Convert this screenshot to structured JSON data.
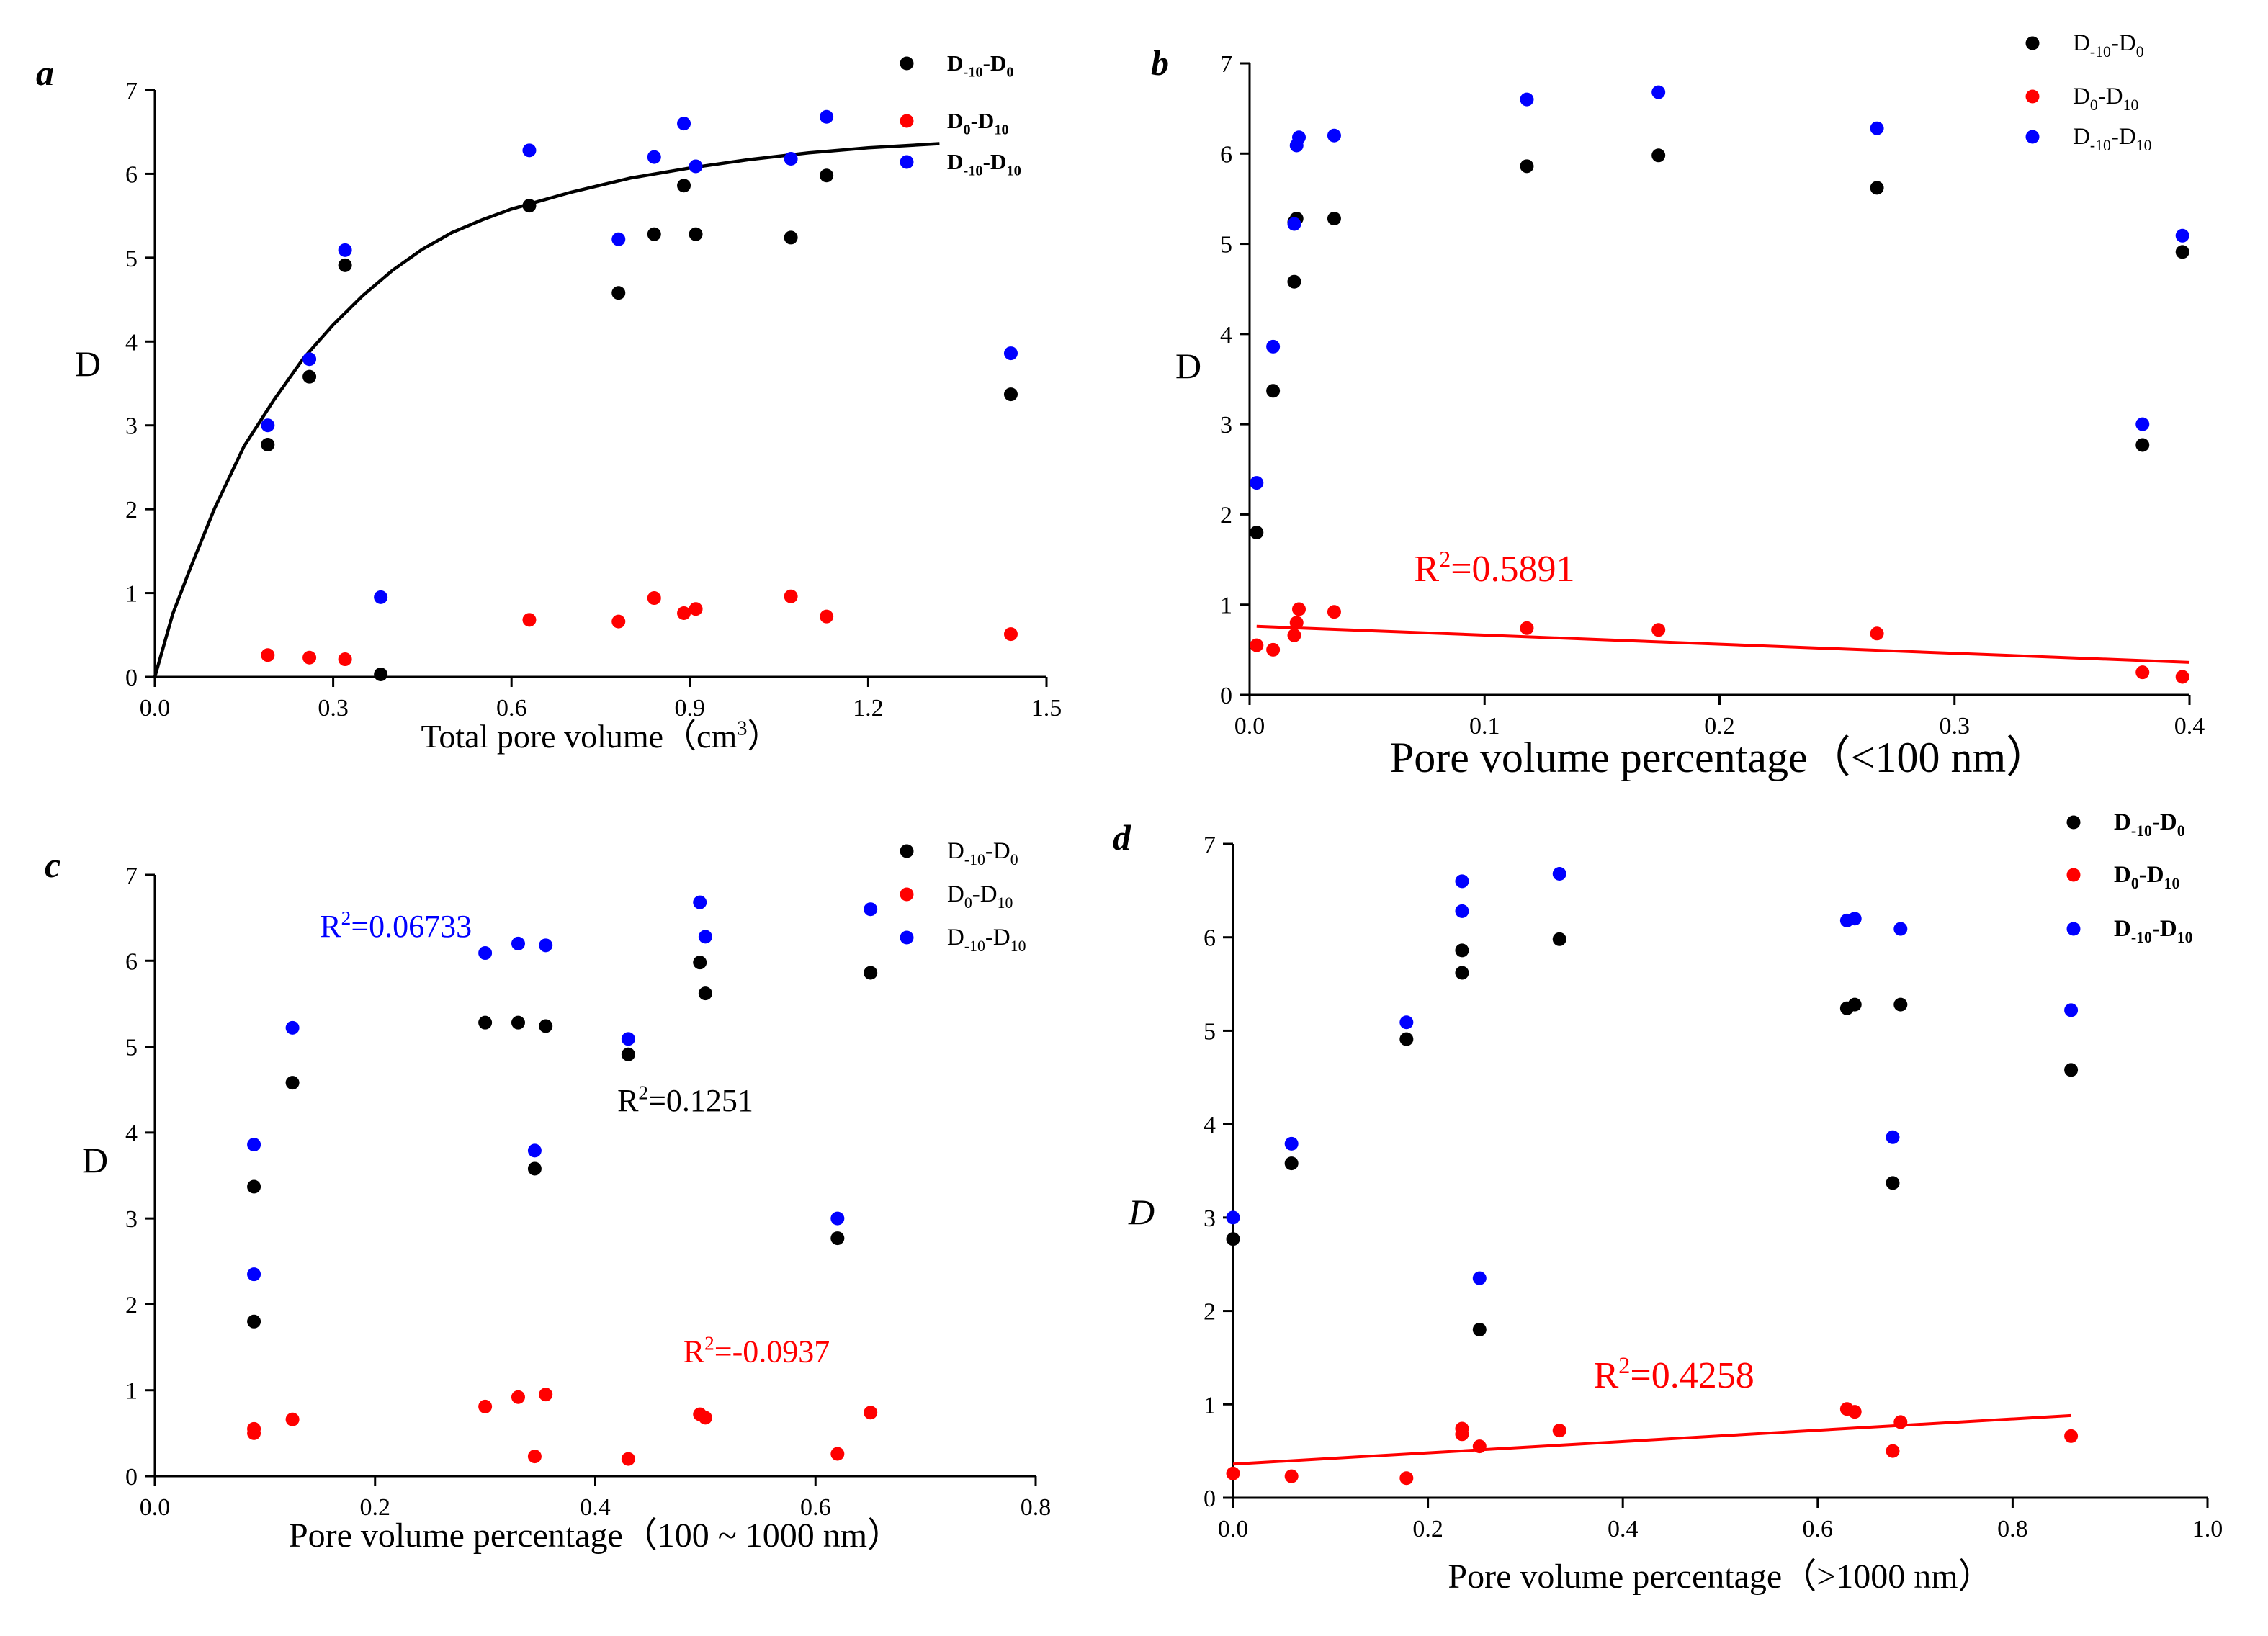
{
  "colors": {
    "s0": "#000000",
    "s1": "#ff0000",
    "s2": "#0000ff",
    "axis": "#000000"
  },
  "chart_data": [
    {
      "panel": "a",
      "type": "scatter",
      "title": "",
      "xlabel": "Total pore volume（cm",
      "xlabel_sup": "3",
      "xlabel_tail": "）",
      "ylabel": "D",
      "xlim": [
        0,
        1.5
      ],
      "ylim": [
        0,
        7
      ],
      "xticks": [
        0.0,
        0.3,
        0.6,
        0.9,
        1.2,
        1.5
      ],
      "xtick_labels": [
        "0.0",
        "0.3",
        "0.6",
        "0.9",
        "1.2",
        "1.5"
      ],
      "yticks": [
        0,
        1,
        2,
        3,
        4,
        5,
        6,
        7
      ],
      "ytick_labels": [
        "0",
        "1",
        "2",
        "3",
        "4",
        "5",
        "6",
        "7"
      ],
      "legend_bold": true,
      "series": [
        {
          "name": "D-10-D0",
          "base1": "D",
          "sub1": "-10",
          "base2": "-D",
          "sub2": "0",
          "points": [
            [
              0.19,
              2.77
            ],
            [
              0.26,
              3.58
            ],
            [
              0.32,
              4.91
            ],
            [
              0.38,
              0.03
            ],
            [
              0.63,
              5.62
            ],
            [
              0.78,
              4.58
            ],
            [
              0.84,
              5.28
            ],
            [
              0.89,
              5.86
            ],
            [
              0.91,
              5.28
            ],
            [
              1.07,
              5.24
            ],
            [
              1.13,
              5.98
            ],
            [
              1.44,
              3.37
            ]
          ]
        },
        {
          "name": "D0-D10",
          "base1": "D",
          "sub1": "0",
          "base2": "-D",
          "sub2": "10",
          "points": [
            [
              0.19,
              0.26
            ],
            [
              0.26,
              0.23
            ],
            [
              0.32,
              0.21
            ],
            [
              0.63,
              0.68
            ],
            [
              0.78,
              0.66
            ],
            [
              0.84,
              0.94
            ],
            [
              0.89,
              0.76
            ],
            [
              0.91,
              0.81
            ],
            [
              1.07,
              0.96
            ],
            [
              1.13,
              0.72
            ],
            [
              1.44,
              0.51
            ]
          ]
        },
        {
          "name": "D-10-D10",
          "base1": "D",
          "sub1": "-10",
          "base2": "-D",
          "sub2": "10",
          "points": [
            [
              0.19,
              3.0
            ],
            [
              0.26,
              3.79
            ],
            [
              0.32,
              5.09
            ],
            [
              0.38,
              0.95
            ],
            [
              0.63,
              6.28
            ],
            [
              0.78,
              5.22
            ],
            [
              0.84,
              6.2
            ],
            [
              0.89,
              6.6
            ],
            [
              0.91,
              6.09
            ],
            [
              1.07,
              6.18
            ],
            [
              1.13,
              6.68
            ],
            [
              1.44,
              3.86
            ]
          ]
        }
      ],
      "fit_curve": {
        "series": "D-10-D0",
        "points": [
          [
            0,
            0
          ],
          [
            0.03,
            0.75
          ],
          [
            0.06,
            1.3
          ],
          [
            0.1,
            2.0
          ],
          [
            0.15,
            2.75
          ],
          [
            0.2,
            3.3
          ],
          [
            0.25,
            3.8
          ],
          [
            0.3,
            4.2
          ],
          [
            0.35,
            4.55
          ],
          [
            0.4,
            4.85
          ],
          [
            0.45,
            5.1
          ],
          [
            0.5,
            5.3
          ],
          [
            0.55,
            5.45
          ],
          [
            0.6,
            5.58
          ],
          [
            0.7,
            5.78
          ],
          [
            0.8,
            5.95
          ],
          [
            0.9,
            6.07
          ],
          [
            1.0,
            6.17
          ],
          [
            1.1,
            6.25
          ],
          [
            1.2,
            6.31
          ],
          [
            1.32,
            6.36
          ]
        ]
      },
      "annotations": []
    },
    {
      "panel": "b",
      "type": "scatter",
      "title": "",
      "xlabel": "Pore volume percentage（<100 nm）",
      "ylabel": "D",
      "xlim": [
        0,
        0.4
      ],
      "ylim": [
        0,
        7
      ],
      "xticks": [
        0.0,
        0.1,
        0.2,
        0.3,
        0.4
      ],
      "xtick_labels": [
        "0.0",
        "0.1",
        "0.2",
        "0.3",
        "0.4"
      ],
      "yticks": [
        0,
        1,
        2,
        3,
        4,
        5,
        6,
        7
      ],
      "ytick_labels": [
        "0",
        "1",
        "2",
        "3",
        "4",
        "5",
        "6",
        "7"
      ],
      "legend_bold": false,
      "series": [
        {
          "name": "D-10-D0",
          "base1": "D",
          "sub1": "-10",
          "base2": "-D",
          "sub2": "0",
          "points": [
            [
              0.003,
              1.8
            ],
            [
              0.01,
              3.37
            ],
            [
              0.019,
              4.58
            ],
            [
              0.019,
              5.24
            ],
            [
              0.02,
              5.28
            ],
            [
              0.036,
              5.28
            ],
            [
              0.118,
              5.86
            ],
            [
              0.174,
              5.98
            ],
            [
              0.267,
              5.62
            ],
            [
              0.38,
              2.77
            ],
            [
              0.397,
              4.91
            ]
          ]
        },
        {
          "name": "D0-D10",
          "base1": "D",
          "sub1": "0",
          "base2": "-D",
          "sub2": "10",
          "points": [
            [
              0.003,
              0.55
            ],
            [
              0.01,
              0.5
            ],
            [
              0.019,
              0.66
            ],
            [
              0.02,
              0.8
            ],
            [
              0.021,
              0.95
            ],
            [
              0.036,
              0.92
            ],
            [
              0.118,
              0.74
            ],
            [
              0.174,
              0.72
            ],
            [
              0.267,
              0.68
            ],
            [
              0.38,
              0.25
            ],
            [
              0.397,
              0.2
            ]
          ]
        },
        {
          "name": "D-10-D10",
          "base1": "D",
          "sub1": "-10",
          "base2": "-D",
          "sub2": "10",
          "points": [
            [
              0.003,
              2.35
            ],
            [
              0.01,
              3.86
            ],
            [
              0.019,
              5.22
            ],
            [
              0.02,
              6.09
            ],
            [
              0.021,
              6.18
            ],
            [
              0.036,
              6.2
            ],
            [
              0.118,
              6.6
            ],
            [
              0.174,
              6.68
            ],
            [
              0.267,
              6.28
            ],
            [
              0.38,
              3.0
            ],
            [
              0.397,
              5.09
            ]
          ]
        }
      ],
      "fit_lines": [
        {
          "series": "D0-D10",
          "x1": 0.003,
          "y1": 0.76,
          "x2": 0.4,
          "y2": 0.36
        }
      ],
      "annotations": [
        {
          "base": "R",
          "sup": "2",
          "text": "=0.5891",
          "x": 0.07,
          "y": 1.26,
          "series": "D0-D10"
        }
      ]
    },
    {
      "panel": "c",
      "type": "scatter",
      "title": "",
      "xlabel": "Pore volume percentage（100 ~ 1000 nm）",
      "ylabel": "D",
      "xlim": [
        0,
        0.8
      ],
      "ylim": [
        0,
        7
      ],
      "xticks": [
        0.0,
        0.2,
        0.4,
        0.6,
        0.8
      ],
      "xtick_labels": [
        "0.0",
        "0.2",
        "0.4",
        "0.6",
        "0.8"
      ],
      "yticks": [
        0,
        1,
        2,
        3,
        4,
        5,
        6,
        7
      ],
      "ytick_labels": [
        "0",
        "1",
        "2",
        "3",
        "4",
        "5",
        "6",
        "7"
      ],
      "legend_bold": false,
      "series": [
        {
          "name": "D-10-D0",
          "base1": "D",
          "sub1": "-10",
          "base2": "-D",
          "sub2": "0",
          "points": [
            [
              0.09,
              3.37
            ],
            [
              0.09,
              1.8
            ],
            [
              0.125,
              4.58
            ],
            [
              0.3,
              5.28
            ],
            [
              0.33,
              5.28
            ],
            [
              0.345,
              3.58
            ],
            [
              0.355,
              5.24
            ],
            [
              0.43,
              4.91
            ],
            [
              0.495,
              5.98
            ],
            [
              0.5,
              5.62
            ],
            [
              0.62,
              2.77
            ],
            [
              0.65,
              5.86
            ]
          ]
        },
        {
          "name": "D0-D10",
          "base1": "D",
          "sub1": "0",
          "base2": "-D",
          "sub2": "10",
          "points": [
            [
              0.09,
              0.55
            ],
            [
              0.09,
              0.5
            ],
            [
              0.125,
              0.66
            ],
            [
              0.3,
              0.81
            ],
            [
              0.33,
              0.92
            ],
            [
              0.345,
              0.23
            ],
            [
              0.355,
              0.95
            ],
            [
              0.43,
              0.2
            ],
            [
              0.495,
              0.72
            ],
            [
              0.5,
              0.68
            ],
            [
              0.62,
              0.26
            ],
            [
              0.65,
              0.74
            ]
          ]
        },
        {
          "name": "D-10-D10",
          "base1": "D",
          "sub1": "-10",
          "base2": "-D",
          "sub2": "10",
          "points": [
            [
              0.09,
              3.86
            ],
            [
              0.09,
              2.35
            ],
            [
              0.125,
              5.22
            ],
            [
              0.3,
              6.09
            ],
            [
              0.33,
              6.2
            ],
            [
              0.345,
              3.79
            ],
            [
              0.355,
              6.18
            ],
            [
              0.43,
              5.09
            ],
            [
              0.495,
              6.68
            ],
            [
              0.5,
              6.28
            ],
            [
              0.62,
              3.0
            ],
            [
              0.65,
              6.6
            ]
          ]
        }
      ],
      "annotations": [
        {
          "base": "R",
          "sup": "2",
          "text": "=0.06733",
          "x": 0.15,
          "y": 6.28,
          "series": "D-10-D10"
        },
        {
          "base": "R",
          "sup": "2",
          "text": "=0.1251",
          "x": 0.42,
          "y": 4.25,
          "series": "D-10-D0"
        },
        {
          "base": "R",
          "sup": "2",
          "text": "=-0.0937",
          "x": 0.48,
          "y": 1.33,
          "series": "D0-D10"
        }
      ]
    },
    {
      "panel": "d",
      "type": "scatter",
      "title": "",
      "xlabel": "Pore volume percentage（>1000 nm）",
      "ylabel": "D",
      "ylabel_italic": true,
      "xlim": [
        0,
        1.0
      ],
      "ylim": [
        0,
        7
      ],
      "xticks": [
        0.0,
        0.2,
        0.4,
        0.6,
        0.8,
        1.0
      ],
      "xtick_labels": [
        "0.0",
        "0.2",
        "0.4",
        "0.6",
        "0.8",
        "1.0"
      ],
      "yticks": [
        0,
        1,
        2,
        3,
        4,
        5,
        6,
        7
      ],
      "ytick_labels": [
        "0",
        "1",
        "2",
        "3",
        "4",
        "5",
        "6",
        "7"
      ],
      "legend_bold": true,
      "series": [
        {
          "name": "D-10-D0",
          "base1": "D",
          "sub1": "-10",
          "base2": "-D",
          "sub2": "0",
          "points": [
            [
              0.0,
              2.77
            ],
            [
              0.06,
              3.58
            ],
            [
              0.178,
              4.91
            ],
            [
              0.235,
              5.86
            ],
            [
              0.235,
              5.62
            ],
            [
              0.253,
              1.8
            ],
            [
              0.335,
              5.98
            ],
            [
              0.63,
              5.24
            ],
            [
              0.638,
              5.28
            ],
            [
              0.677,
              3.37
            ],
            [
              0.685,
              5.28
            ],
            [
              0.86,
              4.58
            ]
          ]
        },
        {
          "name": "D0-D10",
          "base1": "D",
          "sub1": "0",
          "base2": "-D",
          "sub2": "10",
          "points": [
            [
              0.0,
              0.26
            ],
            [
              0.06,
              0.23
            ],
            [
              0.178,
              0.21
            ],
            [
              0.235,
              0.74
            ],
            [
              0.235,
              0.68
            ],
            [
              0.253,
              0.55
            ],
            [
              0.335,
              0.72
            ],
            [
              0.63,
              0.95
            ],
            [
              0.638,
              0.92
            ],
            [
              0.677,
              0.5
            ],
            [
              0.685,
              0.81
            ],
            [
              0.86,
              0.66
            ]
          ]
        },
        {
          "name": "D-10-D10",
          "base1": "D",
          "sub1": "-10",
          "base2": "-D",
          "sub2": "10",
          "points": [
            [
              0.0,
              3.0
            ],
            [
              0.06,
              3.79
            ],
            [
              0.178,
              5.09
            ],
            [
              0.235,
              6.6
            ],
            [
              0.235,
              6.28
            ],
            [
              0.253,
              2.35
            ],
            [
              0.335,
              6.68
            ],
            [
              0.63,
              6.18
            ],
            [
              0.638,
              6.2
            ],
            [
              0.677,
              3.86
            ],
            [
              0.685,
              6.09
            ],
            [
              0.86,
              5.22
            ]
          ]
        }
      ],
      "fit_lines": [
        {
          "series": "D0-D10",
          "x1": 0.0,
          "y1": 0.36,
          "x2": 0.86,
          "y2": 0.88
        }
      ],
      "annotations": [
        {
          "base": "R",
          "sup": "2",
          "text": "=0.4258",
          "x": 0.37,
          "y": 1.18,
          "series": "D0-D10"
        }
      ]
    }
  ]
}
